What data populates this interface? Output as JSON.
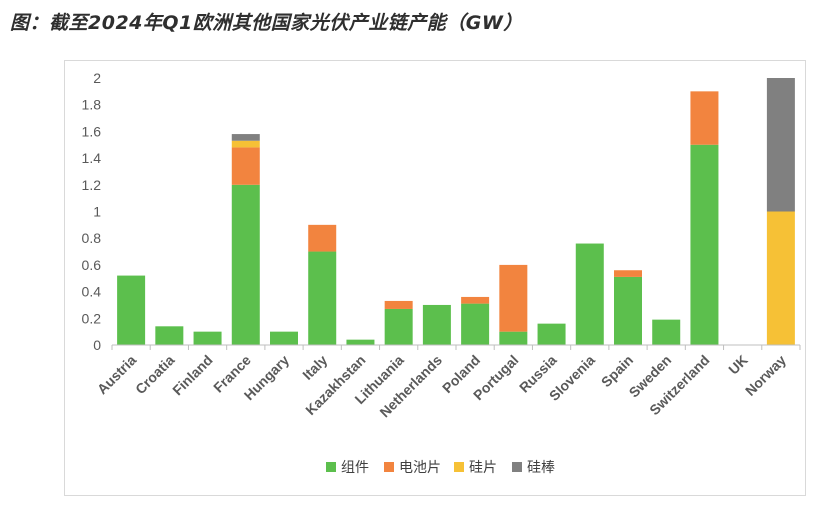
{
  "title": "图：截至2024年Q1欧洲其他国家光伏产业链产能（GW）",
  "chart_data": {
    "type": "bar",
    "stacked": true,
    "title": "图：截至2024年Q1欧洲其他国家光伏产业链产能（GW）",
    "xlabel": "",
    "ylabel": "",
    "ylim": [
      0,
      2
    ],
    "yticks": [
      "0",
      "0.2",
      "0.4",
      "0.6",
      "0.8",
      "1",
      "1.2",
      "1.4",
      "1.6",
      "1.8",
      "2"
    ],
    "categories": [
      "Austria",
      "Croatia",
      "Finland",
      "France",
      "Hungary",
      "Italy",
      "Kazakhstan",
      "Lithuania",
      "Netherlands",
      "Poland",
      "Portugal",
      "Russia",
      "Slovenia",
      "Spain",
      "Sweden",
      "Switzerland",
      "UK",
      "Norway"
    ],
    "series": [
      {
        "name": "组件",
        "color": "#5cbf4d",
        "values": [
          0.52,
          0.14,
          0.1,
          1.2,
          0.1,
          0.7,
          0.04,
          0.27,
          0.3,
          0.31,
          0.1,
          0.16,
          0.76,
          0.51,
          0.19,
          1.5,
          0,
          0
        ]
      },
      {
        "name": "电池片",
        "color": "#f2843f",
        "values": [
          0,
          0,
          0,
          0.28,
          0,
          0.2,
          0,
          0.06,
          0,
          0.05,
          0.5,
          0,
          0,
          0.05,
          0,
          0.4,
          0,
          0
        ]
      },
      {
        "name": "硅片",
        "color": "#f6c136",
        "values": [
          0,
          0,
          0,
          0.05,
          0,
          0,
          0,
          0,
          0,
          0,
          0,
          0,
          0,
          0,
          0,
          0,
          0,
          1.0
        ]
      },
      {
        "name": "硅棒",
        "color": "#808080",
        "values": [
          0,
          0,
          0,
          0.05,
          0,
          0,
          0,
          0,
          0,
          0,
          0,
          0,
          0,
          0,
          0,
          0,
          0,
          1.0
        ]
      }
    ],
    "legend": "bottom"
  }
}
